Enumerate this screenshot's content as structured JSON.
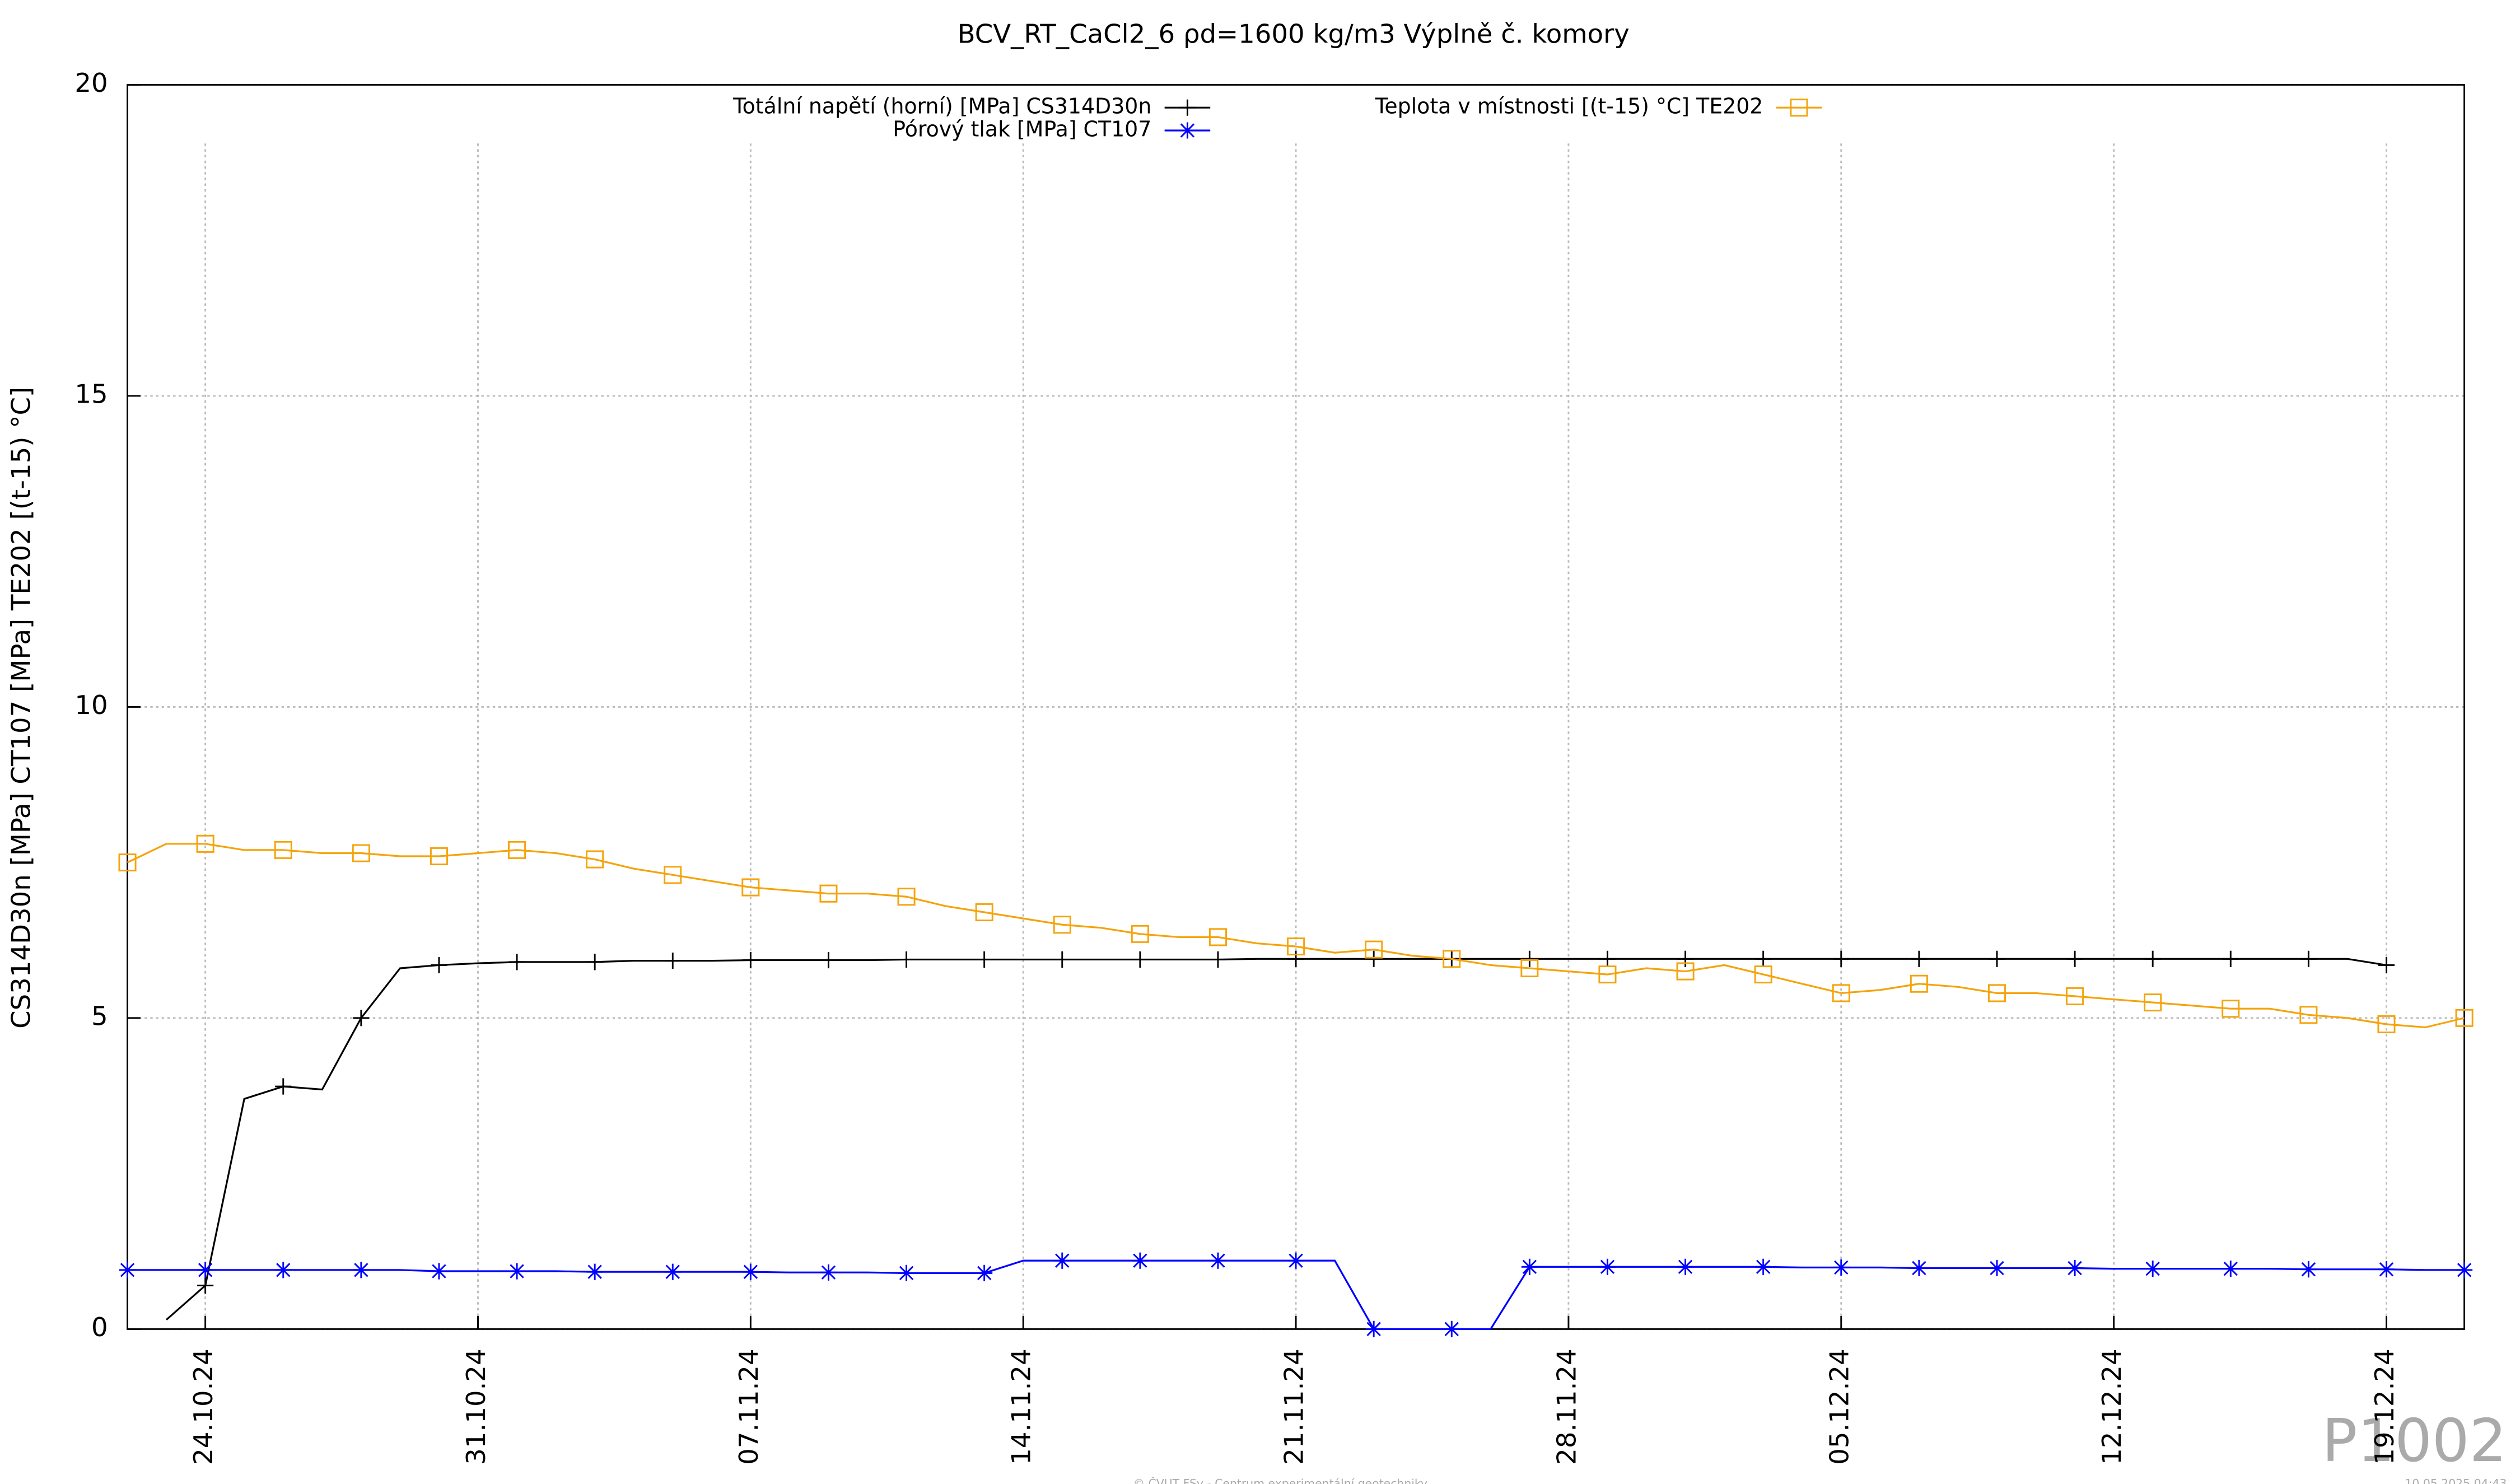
{
  "chart_data": {
    "type": "line",
    "title": "BCV_RT_CaCl2_6 ρd=1600 kg/m3 Výplně č. komory",
    "y_label": "CS314D30n [MPa] CT107 [MPa] TE202 [(t-15) °C]",
    "watermark": "P1002",
    "footer": "© ČVUT FSv - Centrum experimentální geotechniky",
    "timestamp": "10.05.2025 04:43",
    "grid": true,
    "x": [
      "2024-10-22",
      "2024-10-23",
      "2024-10-24",
      "2024-10-25",
      "2024-10-26",
      "2024-10-27",
      "2024-10-28",
      "2024-10-29",
      "2024-10-30",
      "2024-10-31",
      "2024-11-01",
      "2024-11-02",
      "2024-11-03",
      "2024-11-04",
      "2024-11-05",
      "2024-11-06",
      "2024-11-07",
      "2024-11-08",
      "2024-11-09",
      "2024-11-10",
      "2024-11-11",
      "2024-11-12",
      "2024-11-13",
      "2024-11-14",
      "2024-11-15",
      "2024-11-16",
      "2024-11-17",
      "2024-11-18",
      "2024-11-19",
      "2024-11-20",
      "2024-11-21",
      "2024-11-22",
      "2024-11-23",
      "2024-11-24",
      "2024-11-25",
      "2024-11-26",
      "2024-11-27",
      "2024-11-28",
      "2024-11-29",
      "2024-11-30",
      "2024-12-01",
      "2024-12-02",
      "2024-12-03",
      "2024-12-04",
      "2024-12-05",
      "2024-12-06",
      "2024-12-07",
      "2024-12-08",
      "2024-12-09",
      "2024-12-10",
      "2024-12-11",
      "2024-12-12",
      "2024-12-13",
      "2024-12-14",
      "2024-12-15",
      "2024-12-16",
      "2024-12-17",
      "2024-12-18",
      "2024-12-19",
      "2024-12-20",
      "2024-12-21"
    ],
    "xlim": [
      "2024-10-22",
      "2024-12-21"
    ],
    "xticks": [
      {
        "value": "2024-10-24",
        "label": "24.10.24"
      },
      {
        "value": "2024-10-31",
        "label": "31.10.24"
      },
      {
        "value": "2024-11-07",
        "label": "07.11.24"
      },
      {
        "value": "2024-11-14",
        "label": "14.11.24"
      },
      {
        "value": "2024-11-21",
        "label": "21.11.24"
      },
      {
        "value": "2024-11-28",
        "label": "28.11.24"
      },
      {
        "value": "2024-12-05",
        "label": "05.12.24"
      },
      {
        "value": "2024-12-12",
        "label": "12.12.24"
      },
      {
        "value": "2024-12-19",
        "label": "19.12.24"
      }
    ],
    "ylim": [
      0,
      20
    ],
    "yticks": [
      0,
      5,
      10,
      15,
      20
    ],
    "series": [
      {
        "name": "Totální napětí (horní) [MPa] CS314D30n",
        "color": "#000000",
        "marker": "plus",
        "values": [
          null,
          0.15,
          0.7,
          3.7,
          3.9,
          3.85,
          5.0,
          5.8,
          5.85,
          5.88,
          5.9,
          5.9,
          5.9,
          5.92,
          5.92,
          5.92,
          5.93,
          5.93,
          5.93,
          5.93,
          5.94,
          5.94,
          5.94,
          5.94,
          5.94,
          5.94,
          5.94,
          5.94,
          5.94,
          5.95,
          5.95,
          5.95,
          5.95,
          5.95,
          5.95,
          5.95,
          5.95,
          5.95,
          5.95,
          5.95,
          5.95,
          5.95,
          5.95,
          5.95,
          5.95,
          5.95,
          5.95,
          5.95,
          5.95,
          5.95,
          5.95,
          5.95,
          5.95,
          5.95,
          5.95,
          5.95,
          5.95,
          5.95,
          5.85,
          null,
          null
        ]
      },
      {
        "name": "Pórový tlak [MPa] CT107",
        "color": "#0000ff",
        "marker": "star",
        "values": [
          0.95,
          0.95,
          0.95,
          0.95,
          0.95,
          0.95,
          0.95,
          0.95,
          0.93,
          0.93,
          0.93,
          0.93,
          0.92,
          0.92,
          0.92,
          0.92,
          0.92,
          0.91,
          0.91,
          0.91,
          0.9,
          0.9,
          0.9,
          1.1,
          1.1,
          1.1,
          1.1,
          1.1,
          1.1,
          1.1,
          1.1,
          1.1,
          0,
          0,
          0,
          0,
          1.0,
          1.0,
          1.0,
          1.0,
          1.0,
          1.0,
          1.0,
          0.99,
          0.99,
          0.99,
          0.98,
          0.98,
          0.98,
          0.98,
          0.98,
          0.97,
          0.97,
          0.97,
          0.97,
          0.97,
          0.96,
          0.96,
          0.96,
          0.95,
          0.95
        ]
      },
      {
        "name": "Teplota v místnosti [(t-15) °C] TE202",
        "color": "#f5a30a",
        "marker": "square",
        "values": [
          7.5,
          7.8,
          7.8,
          7.7,
          7.7,
          7.65,
          7.65,
          7.6,
          7.6,
          7.65,
          7.7,
          7.65,
          7.55,
          7.4,
          7.3,
          7.2,
          7.1,
          7.05,
          7.0,
          7.0,
          6.95,
          6.8,
          6.7,
          6.6,
          6.5,
          6.45,
          6.35,
          6.3,
          6.3,
          6.2,
          6.15,
          6.05,
          6.1,
          6.0,
          5.95,
          5.85,
          5.8,
          5.75,
          5.7,
          5.8,
          5.75,
          5.85,
          5.7,
          5.55,
          5.4,
          5.45,
          5.55,
          5.5,
          5.4,
          5.4,
          5.35,
          5.3,
          5.25,
          5.2,
          5.15,
          5.15,
          5.05,
          5.0,
          4.9,
          4.85,
          5.0
        ]
      }
    ]
  }
}
